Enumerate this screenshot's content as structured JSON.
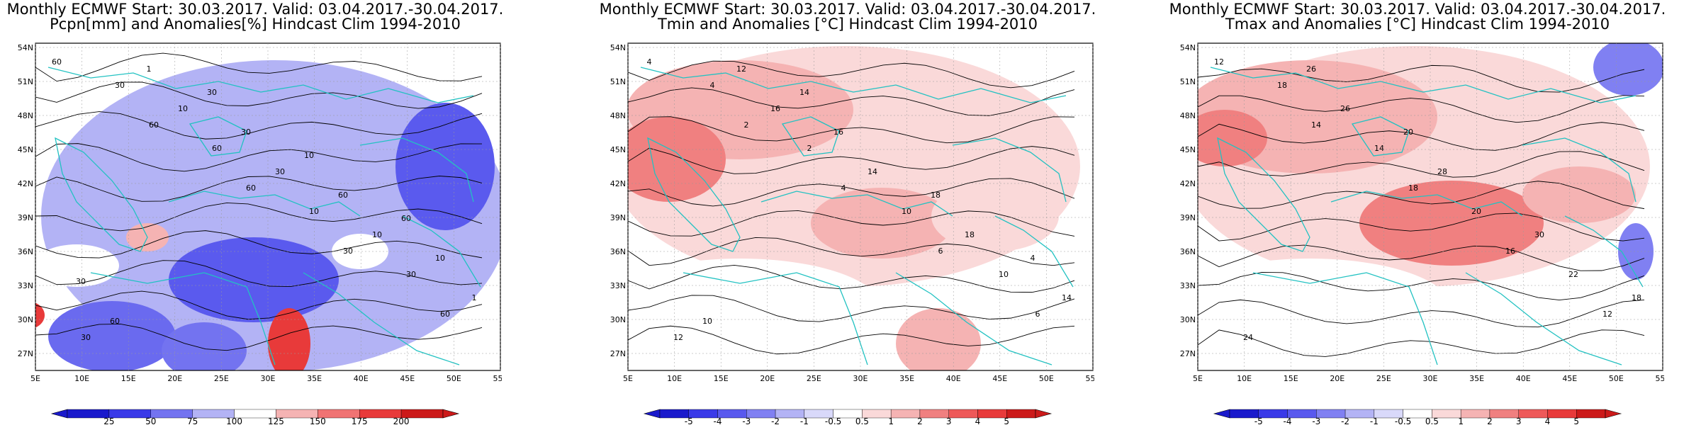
{
  "panels": [
    {
      "title_line1": "Monthly ECMWF Start: 30.03.2017. Valid: 03.04.2017.-30.04.2017.",
      "title_line2": "Pcpn[mm] and Anomalies[%] Hindcast Clim 1994-2010",
      "colorbar_labels": [
        "25",
        "50",
        "75",
        "100",
        "125",
        "150",
        "175",
        "200"
      ],
      "colorbar_colors": [
        "#1a1acc",
        "#3a3ae8",
        "#7373f0",
        "#b3b3f5",
        "#ffffff",
        "#f5b3b3",
        "#f07373",
        "#e83a3a",
        "#cc1a1a"
      ],
      "contour_labels": [
        "60",
        "60",
        "60",
        "30",
        "60",
        "30",
        "60",
        "10",
        "30",
        "30",
        "10",
        "30",
        "10",
        "1",
        "1",
        "30",
        "60",
        "10",
        "60",
        "30",
        "10",
        "60",
        "30"
      ]
    },
    {
      "title_line1": "Monthly ECMWF Start: 30.03.2017. Valid: 03.04.2017.-30.04.2017.",
      "title_line2": "Tmin and Anomalies [°C] Hindcast Clim 1994-2010",
      "colorbar_labels": [
        "-5",
        "-4",
        "-3",
        "-2",
        "-1",
        "-0.5",
        "0.5",
        "1",
        "2",
        "3",
        "4",
        "5"
      ],
      "colorbar_colors": [
        "#1a1acc",
        "#3a3ae8",
        "#5959ee",
        "#8080f2",
        "#b3b3f5",
        "#d9d9fa",
        "#ffffff",
        "#fad9d9",
        "#f5b3b3",
        "#f08080",
        "#ee5959",
        "#e83a3a",
        "#cc1a1a"
      ],
      "contour_labels": [
        "4",
        "2",
        "4",
        "6",
        "6",
        "4",
        "2",
        "10",
        "10",
        "12",
        "16",
        "14",
        "18",
        "14",
        "12",
        "16",
        "18",
        "4",
        "10",
        "14"
      ]
    },
    {
      "title_line1": "Monthly ECMWF Start: 30.03.2017. Valid: 03.04.2017.-30.04.2017.",
      "title_line2": "Tmax and Anomalies [°C] Hindcast Clim 1994-2010",
      "colorbar_labels": [
        "-5",
        "-4",
        "-3",
        "-2",
        "-1",
        "-0.5",
        "0.5",
        "1",
        "2",
        "3",
        "4",
        "5"
      ],
      "colorbar_colors": [
        "#1a1acc",
        "#3a3ae8",
        "#5959ee",
        "#8080f2",
        "#b3b3f5",
        "#d9d9fa",
        "#ffffff",
        "#fad9d9",
        "#f5b3b3",
        "#f08080",
        "#ee5959",
        "#e83a3a",
        "#cc1a1a"
      ],
      "contour_labels": [
        "12",
        "14",
        "18",
        "16",
        "12",
        "18",
        "14",
        "20",
        "22",
        "24",
        "26",
        "28",
        "30",
        "18",
        "26",
        "20"
      ]
    }
  ],
  "axes": {
    "lat_labels": [
      "54N",
      "51N",
      "48N",
      "45N",
      "42N",
      "39N",
      "36N",
      "33N",
      "30N",
      "27N"
    ],
    "lon_labels": [
      "5E",
      "10E",
      "15E",
      "20E",
      "25E",
      "30E",
      "35E",
      "40E",
      "45E",
      "50E",
      "55E"
    ]
  },
  "colors": {
    "coast": "#22c2c2",
    "contour": "#000000"
  }
}
